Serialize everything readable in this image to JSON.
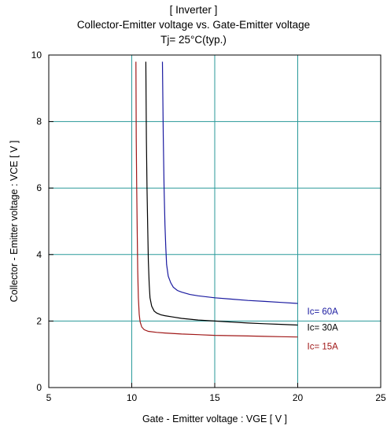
{
  "chart_data": {
    "type": "line",
    "title": "[ Inverter ]",
    "subtitle": "Collector-Emitter voltage  vs. Gate-Emitter voltage",
    "condition": "Tj= 25°C(typ.)",
    "xlabel": "Gate - Emitter voltage :  VGE  [ V ]",
    "ylabel": "Collector - Emitter voltage :  VCE  [ V ]",
    "xlim": [
      5,
      25
    ],
    "ylim": [
      0,
      10
    ],
    "xticks": [
      5,
      10,
      15,
      20,
      25
    ],
    "yticks": [
      0,
      2,
      4,
      6,
      8,
      10
    ],
    "grid": true,
    "series": [
      {
        "name": "Ic= 60A",
        "color": "#1a1aa0",
        "x": [
          11.85,
          11.9,
          11.95,
          12.0,
          12.05,
          12.1,
          12.2,
          12.35,
          12.5,
          12.75,
          13.0,
          13.5,
          14.0,
          15.0,
          16.0,
          17.0,
          18.0,
          19.0,
          20.0
        ],
        "y": [
          9.8,
          7.5,
          6.0,
          4.9,
          4.2,
          3.7,
          3.35,
          3.15,
          3.02,
          2.92,
          2.87,
          2.8,
          2.76,
          2.7,
          2.66,
          2.62,
          2.59,
          2.56,
          2.53
        ]
      },
      {
        "name": "Ic= 30A",
        "color": "#000000",
        "x": [
          10.85,
          10.88,
          10.92,
          10.96,
          11.0,
          11.05,
          11.1,
          11.2,
          11.35,
          11.5,
          11.75,
          12.0,
          12.5,
          13.0,
          14.0,
          15.0,
          16.0,
          17.0,
          18.0,
          19.0,
          20.0
        ],
        "y": [
          9.8,
          7.5,
          6.0,
          4.8,
          3.8,
          3.1,
          2.7,
          2.45,
          2.3,
          2.24,
          2.19,
          2.16,
          2.12,
          2.08,
          2.03,
          2.0,
          1.97,
          1.94,
          1.92,
          1.9,
          1.88
        ]
      },
      {
        "name": "Ic= 15A",
        "color": "#a01818",
        "x": [
          10.25,
          10.27,
          10.3,
          10.33,
          10.36,
          10.4,
          10.45,
          10.5,
          10.6,
          10.75,
          11.0,
          11.5,
          12.0,
          13.0,
          14.0,
          15.0,
          16.0,
          17.0,
          18.0,
          19.0,
          20.0
        ],
        "y": [
          9.8,
          7.5,
          6.0,
          4.6,
          3.5,
          2.7,
          2.2,
          1.98,
          1.82,
          1.74,
          1.69,
          1.66,
          1.64,
          1.61,
          1.59,
          1.57,
          1.56,
          1.55,
          1.54,
          1.53,
          1.52
        ]
      }
    ]
  }
}
